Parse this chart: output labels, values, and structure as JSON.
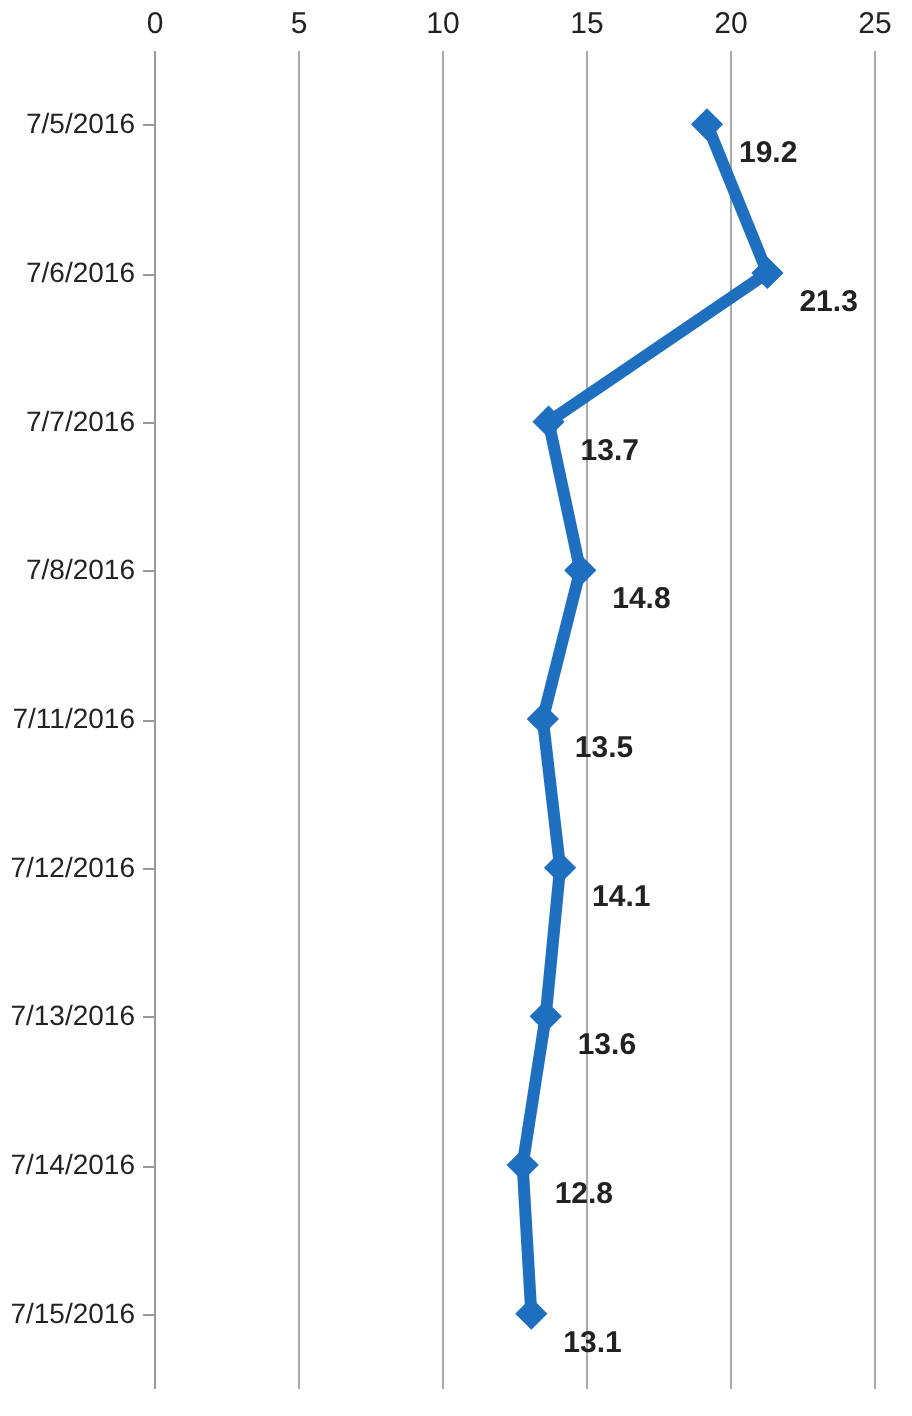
{
  "chart_data": {
    "type": "line",
    "orientation": "horizontal",
    "categories": [
      "7/5/2016",
      "7/6/2016",
      "7/7/2016",
      "7/8/2016",
      "7/11/2016",
      "7/12/2016",
      "7/13/2016",
      "7/14/2016",
      "7/15/2016"
    ],
    "series": [
      {
        "color": "#1f6fc0",
        "values": [
          19.2,
          21.3,
          13.7,
          14.8,
          13.5,
          14.1,
          13.6,
          12.8,
          13.1
        ]
      }
    ],
    "xlim": [
      0,
      25
    ],
    "xticks": [
      0,
      5,
      10,
      15,
      20,
      25
    ],
    "grid": "x",
    "marker": "diamond",
    "data_labels": true,
    "legend": false
  }
}
